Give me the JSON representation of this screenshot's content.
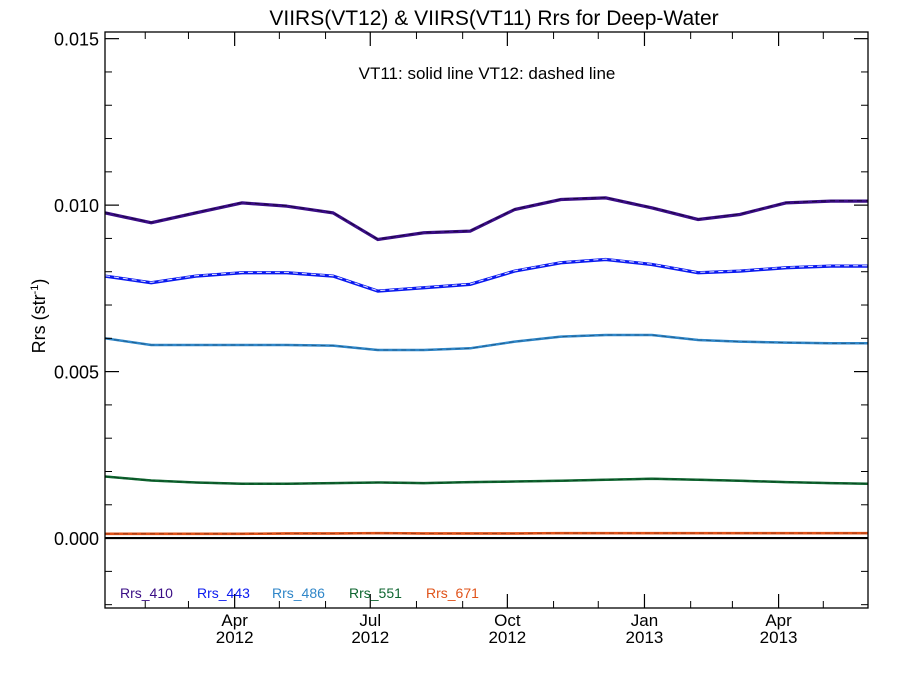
{
  "chart_data": {
    "type": "line",
    "title": "VIIRS(VT12) & VIIRS(VT11)  Rrs for Deep-Water",
    "annotation": "VT11: solid line   VT12: dashed line",
    "ylabel_main": "Rrs (str",
    "ylabel_sup": "-1",
    "ylabel_close": ")",
    "ylim": [
      -0.0021,
      0.0152
    ],
    "yticks": [
      0.0,
      0.005,
      0.01,
      0.015
    ],
    "ytick_labels": [
      "0.000",
      "0.005",
      "0.010",
      "0.015"
    ],
    "y_minor_step": 0.001,
    "xlim": [
      "2012-01-05",
      "2013-05-31"
    ],
    "x_minor_ticks": [
      "2012-02-01",
      "2012-03-01",
      "2012-05-01",
      "2012-06-01",
      "2012-08-01",
      "2012-09-01",
      "2012-11-01",
      "2012-12-01",
      "2013-02-01",
      "2013-03-01",
      "2013-05-01"
    ],
    "xticks": [
      {
        "date": "2012-04-01",
        "month": "Apr",
        "year": "2012"
      },
      {
        "date": "2012-07-01",
        "month": "Jul",
        "year": "2012"
      },
      {
        "date": "2012-10-01",
        "month": "Oct",
        "year": "2012"
      },
      {
        "date": "2013-01-01",
        "month": "Jan",
        "year": "2013"
      },
      {
        "date": "2013-04-01",
        "month": "Apr",
        "year": "2013"
      }
    ],
    "zero_line": 0.0,
    "grid": false,
    "legend_placement": "bottom-left",
    "x": [
      "2012-01-05",
      "2012-02-05",
      "2012-03-06",
      "2012-04-06",
      "2012-05-06",
      "2012-06-06",
      "2012-07-06",
      "2012-08-06",
      "2012-09-06",
      "2012-10-06",
      "2012-11-06",
      "2012-12-06",
      "2013-01-06",
      "2013-02-06",
      "2013-03-06",
      "2013-04-06",
      "2013-05-06",
      "2013-05-31"
    ],
    "series": [
      {
        "name": "Rrs_410",
        "color": "#3a0d85",
        "vt11": [
          0.00975,
          0.00945,
          0.00975,
          0.01005,
          0.00995,
          0.00975,
          0.00895,
          0.00915,
          0.0092,
          0.00985,
          0.01015,
          0.0102,
          0.0099,
          0.00955,
          0.0097,
          0.01005,
          0.0101,
          0.0101
        ],
        "vt12": [
          0.00978,
          0.00948,
          0.00978,
          0.01008,
          0.00998,
          0.00978,
          0.00898,
          0.00918,
          0.00923,
          0.00988,
          0.01018,
          0.01023,
          0.00993,
          0.00958,
          0.00973,
          0.01008,
          0.01013,
          0.01013
        ]
      },
      {
        "name": "Rrs_443",
        "color": "#0b1af0",
        "vt11": [
          0.00785,
          0.00765,
          0.00785,
          0.00795,
          0.00795,
          0.00785,
          0.0074,
          0.0075,
          0.0076,
          0.008,
          0.00825,
          0.00835,
          0.0082,
          0.00795,
          0.008,
          0.0081,
          0.00815,
          0.00815
        ],
        "vt12": [
          0.00788,
          0.00768,
          0.00788,
          0.00798,
          0.00798,
          0.00788,
          0.00743,
          0.00753,
          0.00763,
          0.00803,
          0.00828,
          0.00838,
          0.00823,
          0.00798,
          0.00803,
          0.00813,
          0.00818,
          0.00818
        ],
        "dash_color": "#ffffff"
      },
      {
        "name": "Rrs_486",
        "color": "#2f86c8",
        "vt11": [
          0.006,
          0.0058,
          0.0058,
          0.0058,
          0.0058,
          0.00578,
          0.00565,
          0.00565,
          0.0057,
          0.0059,
          0.00605,
          0.0061,
          0.0061,
          0.00595,
          0.0059,
          0.00587,
          0.00585,
          0.00585
        ],
        "vt12": [
          0.006,
          0.0058,
          0.0058,
          0.0058,
          0.0058,
          0.00578,
          0.00565,
          0.00565,
          0.0057,
          0.0059,
          0.00605,
          0.0061,
          0.0061,
          0.00595,
          0.0059,
          0.00587,
          0.00585,
          0.00585
        ]
      },
      {
        "name": "Rrs_551",
        "color": "#0f6630",
        "vt11": [
          0.00185,
          0.00173,
          0.00167,
          0.00163,
          0.00163,
          0.00165,
          0.00167,
          0.00165,
          0.00168,
          0.0017,
          0.00172,
          0.00175,
          0.00178,
          0.00175,
          0.00172,
          0.00168,
          0.00165,
          0.00163
        ],
        "vt12": [
          0.00185,
          0.00173,
          0.00167,
          0.00163,
          0.00163,
          0.00165,
          0.00167,
          0.00165,
          0.00168,
          0.0017,
          0.00172,
          0.00175,
          0.00178,
          0.00175,
          0.00172,
          0.00168,
          0.00165,
          0.00163
        ]
      },
      {
        "name": "Rrs_671",
        "color": "#e0531a",
        "vt11": [
          0.00012,
          0.00012,
          0.00012,
          0.00012,
          0.00013,
          0.00013,
          0.00014,
          0.00013,
          0.00013,
          0.00013,
          0.00014,
          0.00014,
          0.00014,
          0.00014,
          0.00014,
          0.00014,
          0.00014,
          0.00014
        ],
        "vt12": [
          0.00013,
          0.00013,
          0.00013,
          0.00013,
          0.00014,
          0.00014,
          0.00015,
          0.00014,
          0.00014,
          0.00014,
          0.00015,
          0.00015,
          0.00015,
          0.00015,
          0.00015,
          0.00015,
          0.00015,
          0.00015
        ]
      }
    ]
  }
}
